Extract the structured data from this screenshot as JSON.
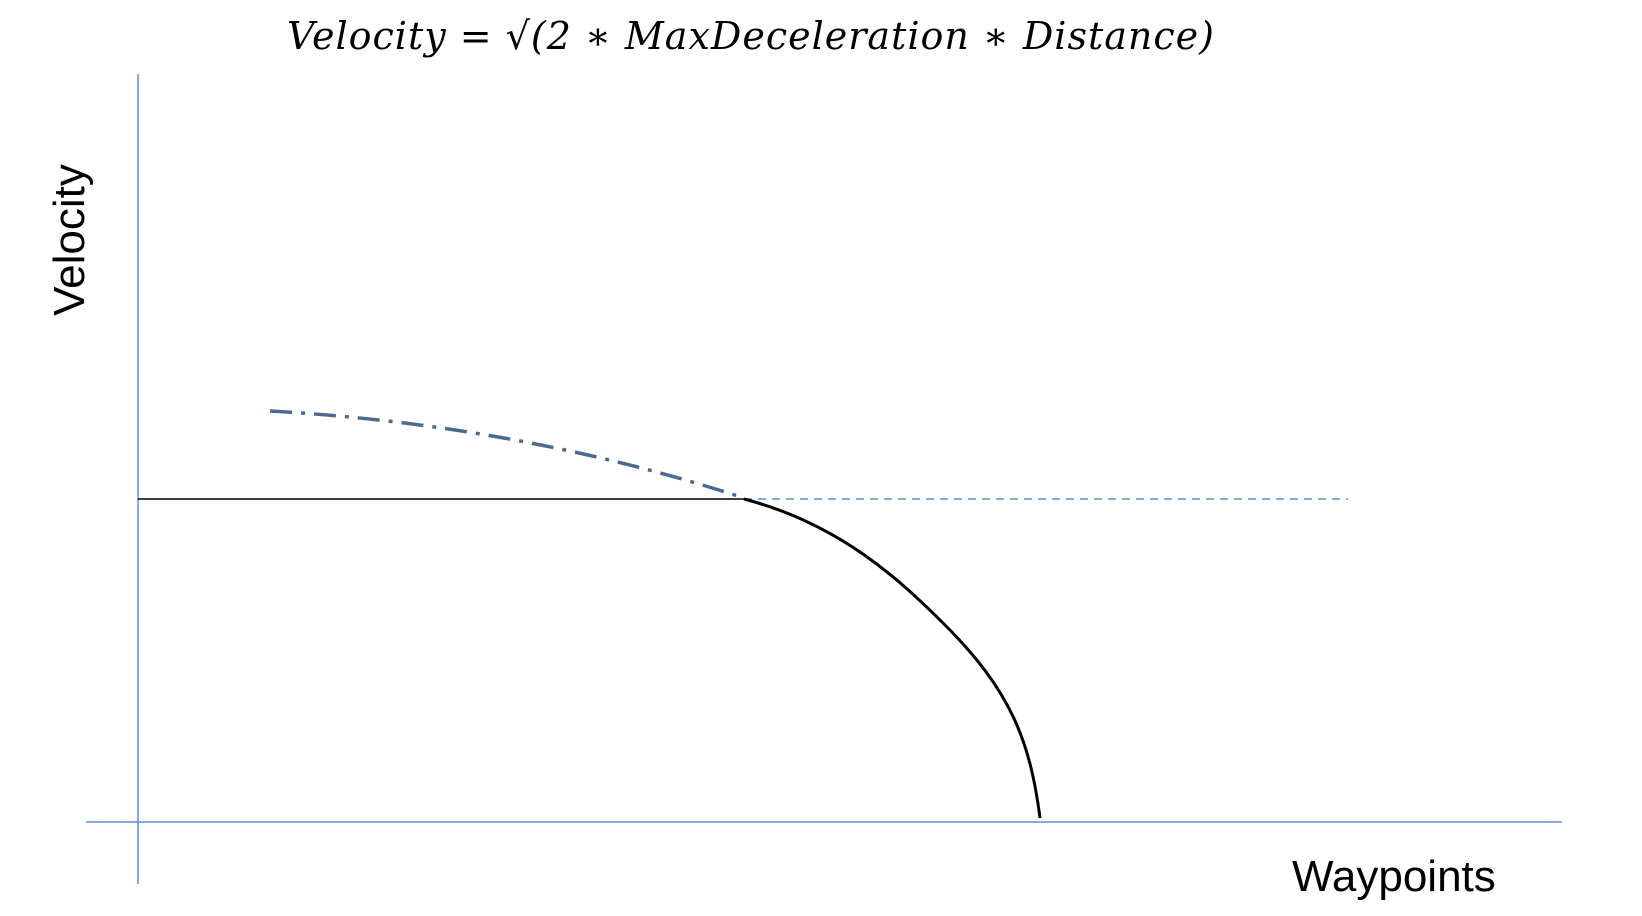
{
  "formula": "Velocity = √(2 ∗ MaxDeceleration ∗ Distance)",
  "axes": {
    "y_label": "Velocity",
    "x_label": "Waypoints"
  },
  "colors": {
    "axis": "#5b8fd0",
    "constant_line": "#000000",
    "decel_curve": "#000000",
    "projected_curve": "#4a6a90",
    "extension_line": "#5b8fd0"
  }
}
